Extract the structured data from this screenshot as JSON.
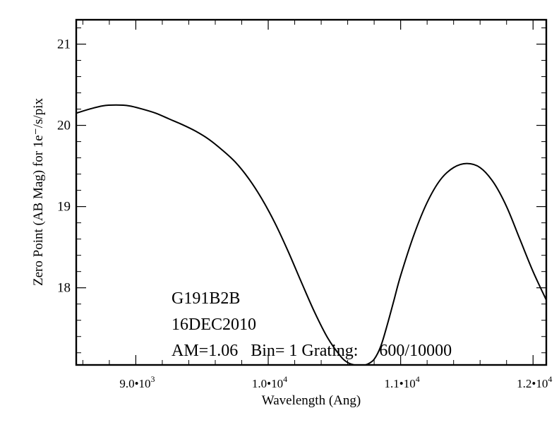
{
  "chart_data": {
    "type": "line",
    "xlabel": "Wavelength (Ang)",
    "ylabel": "Zero Point (AB Mag) for 1e⁻/s/pix",
    "xlim": [
      8550,
      12100
    ],
    "ylim": [
      17.05,
      21.3
    ],
    "x_ticks": [
      {
        "value": 9000,
        "label": "9.0•",
        "exp": "3"
      },
      {
        "value": 10000,
        "label": "1.0•",
        "exp": "4"
      },
      {
        "value": 11000,
        "label": "1.1•",
        "exp": "4"
      },
      {
        "value": 12000,
        "label": "1.2•",
        "exp": "4"
      }
    ],
    "y_ticks": [
      18,
      19,
      20,
      21
    ],
    "annotations": [
      "G191B2B",
      "16DEC2010",
      "AM=1.06   Bin= 1 Grating:     600/10000"
    ],
    "series": [
      {
        "x": [
          8550,
          8650,
          8750,
          8850,
          8950,
          9050,
          9150,
          9250,
          9350,
          9450,
          9550,
          9650,
          9750,
          9850,
          9950,
          10050,
          10150,
          10250,
          10350,
          10450,
          10550,
          10600,
          10650,
          10700,
          10750,
          10800,
          10850,
          10900,
          10950,
          11000,
          11100,
          11200,
          11300,
          11400,
          11500,
          11600,
          11700,
          11800,
          11900,
          12000,
          12100
        ],
        "y": [
          20.15,
          20.2,
          20.24,
          20.25,
          20.24,
          20.2,
          20.15,
          20.08,
          20.01,
          19.93,
          19.83,
          19.7,
          19.55,
          19.35,
          19.1,
          18.8,
          18.45,
          18.07,
          17.7,
          17.38,
          17.15,
          17.08,
          17.05,
          17.04,
          17.06,
          17.12,
          17.28,
          17.55,
          17.85,
          18.15,
          18.65,
          19.05,
          19.33,
          19.48,
          19.53,
          19.48,
          19.3,
          19.0,
          18.6,
          18.2,
          17.85
        ]
      }
    ]
  }
}
